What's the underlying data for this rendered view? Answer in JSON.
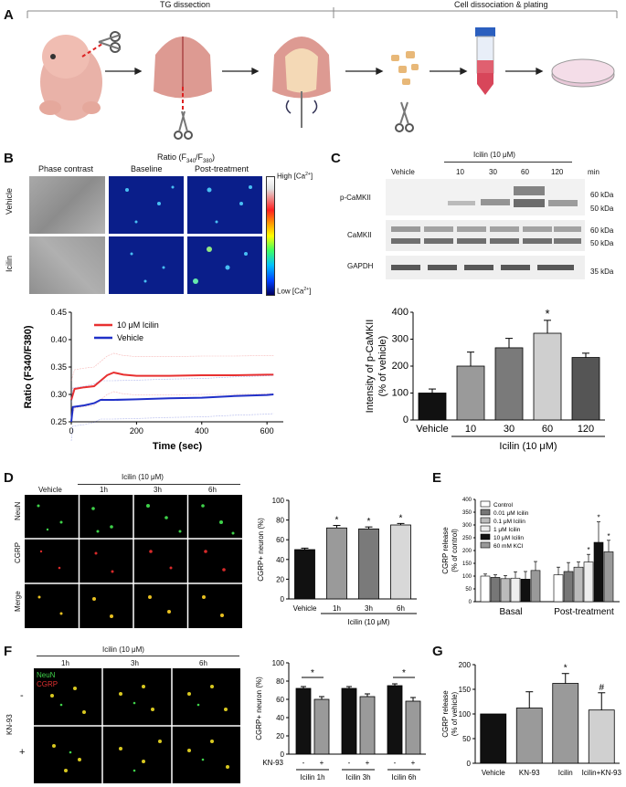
{
  "panelA": {
    "label": "A",
    "step1": "TG dissection",
    "step2": "Cell dissociation & plating"
  },
  "panelB": {
    "label": "B",
    "col_phase": "Phase contrast",
    "ratio_title": "Ratio (F340/F380)",
    "col_baseline": "Baseline",
    "col_post": "Post-treatment",
    "row_vehicle": "Vehicle",
    "row_icilin": "Icilin",
    "scale_high": "High [Ca2+]",
    "scale_low": "Low [Ca2+]",
    "colors": {
      "ratio_bg": "#0a1e8a"
    }
  },
  "trace_chart": {
    "chart_data": {
      "type": "line",
      "xlabel": "Time (sec)",
      "ylabel": "Ratio (F340/F380)",
      "xlim": [
        0,
        650
      ],
      "ylim": [
        0.25,
        0.45
      ],
      "xticks": [
        0,
        200,
        400,
        600
      ],
      "yticks": [
        0.25,
        0.3,
        0.35,
        0.4,
        0.45
      ],
      "series": [
        {
          "name": "10 μM Icilin",
          "color": "#e83030",
          "x": [
            0,
            10,
            40,
            70,
            90,
            110,
            130,
            160,
            200,
            300,
            400,
            500,
            600,
            620
          ],
          "y": [
            0.29,
            0.31,
            0.313,
            0.315,
            0.325,
            0.335,
            0.34,
            0.336,
            0.334,
            0.334,
            0.335,
            0.335,
            0.336,
            0.336
          ]
        },
        {
          "name": "Vehicle",
          "color": "#2030c8",
          "x": [
            0,
            5,
            40,
            70,
            90,
            130,
            200,
            300,
            400,
            500,
            600,
            620
          ],
          "y": [
            0.25,
            0.277,
            0.28,
            0.284,
            0.29,
            0.29,
            0.291,
            0.293,
            0.294,
            0.297,
            0.299,
            0.3
          ]
        }
      ]
    }
  },
  "panelC": {
    "label": "C",
    "treatment": "Icilin (10 μM)",
    "lanes": [
      "Vehicle",
      "10",
      "30",
      "60",
      "120"
    ],
    "unit": "min",
    "rows": [
      {
        "name": "p-CaMKII",
        "kda": [
          "60 kDa",
          "50 kDa"
        ]
      },
      {
        "name": "CaMKII",
        "kda": [
          "60 kDa",
          "50 kDa"
        ]
      },
      {
        "name": "GAPDH",
        "kda": [
          "35 kDa"
        ]
      }
    ]
  },
  "camkii_chart": {
    "chart_data": {
      "type": "bar",
      "categories": [
        "Vehicle",
        "10",
        "30",
        "60",
        "120"
      ],
      "values": [
        100,
        200,
        268,
        322,
        232
      ],
      "errors": [
        15,
        52,
        35,
        48,
        16
      ],
      "colors": [
        "#111111",
        "#9a9a9a",
        "#7a7a7a",
        "#cfcfcf",
        "#555555"
      ],
      "significance": [
        "",
        "",
        "",
        "*",
        ""
      ],
      "ylabel": "Intensity of p-CaMKII (% of vehicle)",
      "xlabel": "Icilin (10 μM)",
      "ylim": [
        0,
        400
      ],
      "yticks": [
        0,
        100,
        200,
        300,
        400
      ]
    }
  },
  "panelD": {
    "label": "D",
    "treatment": "Icilin (10 μM)",
    "cols": [
      "Vehicle",
      "1h",
      "3h",
      "6h"
    ],
    "rows": [
      "NeuN",
      "CGRP",
      "Merge"
    ]
  },
  "cgrp_neuron_chart": {
    "chart_data": {
      "type": "bar",
      "categories": [
        "Vehicle",
        "1h",
        "3h",
        "6h"
      ],
      "values": [
        50,
        72,
        71,
        75
      ],
      "errors": [
        1.5,
        2.5,
        2,
        1.5
      ],
      "colors": [
        "#111111",
        "#9a9a9a",
        "#7a7a7a",
        "#d8d8d8"
      ],
      "significance": [
        "",
        "*",
        "*",
        "*"
      ],
      "ylabel": "CGRP+ neuron (%)",
      "xlabel": "Icilin (10 μM)",
      "ylim": [
        0,
        100
      ],
      "yticks": [
        0,
        20,
        40,
        60,
        80,
        100
      ]
    }
  },
  "panelE": {
    "label": "E"
  },
  "cgrp_release_chart": {
    "chart_data": {
      "type": "bar",
      "categories": [
        "Basal",
        "Post-treatment"
      ],
      "series": [
        {
          "name": "Control",
          "values": [
            100,
            105
          ],
          "errors": [
            8,
            30
          ]
        },
        {
          "name": "0.01 μM Icilin",
          "values": [
            95,
            118
          ],
          "errors": [
            10,
            35
          ]
        },
        {
          "name": "0.1 μM Icilin",
          "values": [
            90,
            135
          ],
          "errors": [
            12,
            20
          ]
        },
        {
          "name": "1 μM Icilin",
          "values": [
            92,
            155
          ],
          "errors": [
            25,
            30
          ]
        },
        {
          "name": "10 μM Icilin",
          "values": [
            88,
            232
          ],
          "errors": [
            30,
            80
          ]
        },
        {
          "name": "60 mM KCl",
          "values": [
            122,
            195
          ],
          "errors": [
            35,
            45
          ]
        }
      ],
      "significance": [
        [
          "",
          ""
        ],
        [
          "",
          ""
        ],
        [
          "",
          ""
        ],
        [
          "",
          "*"
        ],
        [
          "",
          "*"
        ],
        [
          "",
          "*"
        ]
      ],
      "ylabel": "CGRP release (% of control)",
      "ylim": [
        0,
        400
      ],
      "yticks": [
        0,
        50,
        100,
        150,
        200,
        250,
        300,
        350,
        400
      ],
      "legend": "top-left"
    }
  },
  "panelF": {
    "label": "F",
    "treatment": "Icilin (10 μM)",
    "cols": [
      "1h",
      "3h",
      "6h"
    ],
    "side_label": "KN-93",
    "minus": "-",
    "plus": "+",
    "stain_green": "NeuN",
    "stain_red": "CGRP"
  },
  "kn93_chart": {
    "chart_data": {
      "type": "bar",
      "groups": [
        "Icilin 1h",
        "Icilin 3h",
        "Icilin 6h"
      ],
      "kn93_row_label": "KN-93",
      "kn93_states": [
        "-",
        "+"
      ],
      "values": [
        72,
        60,
        72,
        63,
        75,
        58
      ],
      "errors": [
        2,
        3,
        2,
        3,
        2,
        4
      ],
      "colors": [
        "#111111",
        "#9a9a9a",
        "#111111",
        "#9a9a9a",
        "#111111",
        "#9a9a9a"
      ],
      "significance_brackets": [
        "Icilin 1h",
        "Icilin 6h"
      ],
      "sig_mark": "*",
      "ylabel": "CGRP+ neuron (%)",
      "ylim": [
        0,
        100
      ],
      "yticks": [
        0,
        20,
        40,
        60,
        80,
        100
      ]
    }
  },
  "panelG": {
    "label": "G"
  },
  "g_chart": {
    "chart_data": {
      "type": "bar",
      "categories": [
        "Vehicle",
        "KN-93",
        "Icilin",
        "Icilin+KN-93"
      ],
      "values": [
        100,
        112,
        162,
        108
      ],
      "errors": [
        0,
        33,
        20,
        35
      ],
      "colors": [
        "#111111",
        "#9a9a9a",
        "#9a9a9a",
        "#d0d0d0"
      ],
      "significance": [
        "",
        "",
        "*",
        "#"
      ],
      "ylabel": "CGRP release (% of vehicle)",
      "ylim": [
        0,
        200
      ],
      "yticks": [
        0,
        50,
        100,
        150,
        200
      ]
    }
  }
}
